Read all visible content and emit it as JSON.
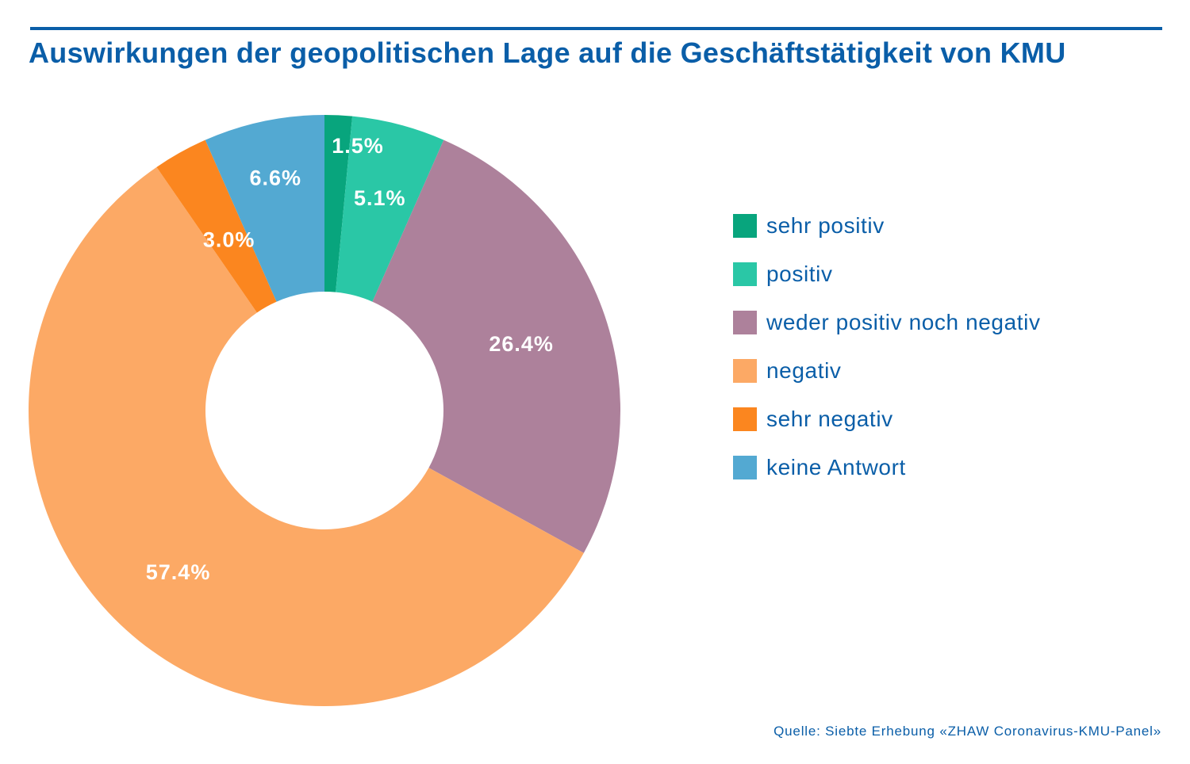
{
  "title": "Auswirkungen der geopolitischen Lage auf die Geschäftstätigkeit von KMU",
  "source": "Quelle: Siebte Erhebung «ZHAW Coronavirus-KMU-Panel»",
  "colors": {
    "title": "#0a5ea8",
    "rule": "#0a5ea8"
  },
  "chart_data": {
    "type": "pie",
    "variant": "donut",
    "legend_position": "right",
    "slices": [
      {
        "label": "sehr positiv",
        "value": 1.5,
        "display": "1.5%",
        "color": "#08a57d"
      },
      {
        "label": "positiv",
        "value": 5.1,
        "display": "5.1%",
        "color": "#2ac7a6"
      },
      {
        "label": "weder positiv noch negativ",
        "value": 26.4,
        "display": "26.4%",
        "color": "#ad819b"
      },
      {
        "label": "negativ",
        "value": 57.4,
        "display": "57.4%",
        "color": "#fca965"
      },
      {
        "label": "sehr negativ",
        "value": 3.0,
        "display": "3.0%",
        "color": "#fb861f"
      },
      {
        "label": "keine Antwort",
        "value": 6.6,
        "display": "6.6%",
        "color": "#53a9d2"
      }
    ]
  }
}
